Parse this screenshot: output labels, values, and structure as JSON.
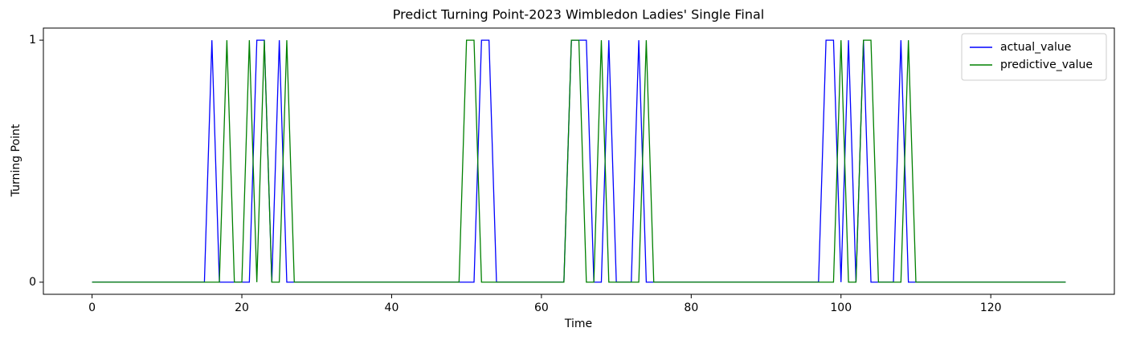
{
  "chart_data": {
    "type": "line",
    "title": "Predict Turning Point-2023 Wimbledon Ladies' Single Final",
    "x_label": "Time",
    "y_label": "Turning Point",
    "x": [
      0,
      1,
      2,
      3,
      4,
      5,
      6,
      7,
      8,
      9,
      10,
      11,
      12,
      13,
      14,
      15,
      16,
      17,
      18,
      19,
      20,
      21,
      22,
      23,
      24,
      25,
      26,
      27,
      28,
      29,
      30,
      31,
      32,
      33,
      34,
      35,
      36,
      37,
      38,
      39,
      40,
      41,
      42,
      43,
      44,
      45,
      46,
      47,
      48,
      49,
      50,
      51,
      52,
      53,
      54,
      55,
      56,
      57,
      58,
      59,
      60,
      61,
      62,
      63,
      64,
      65,
      66,
      67,
      68,
      69,
      70,
      71,
      72,
      73,
      74,
      75,
      76,
      77,
      78,
      79,
      80,
      81,
      82,
      83,
      84,
      85,
      86,
      87,
      88,
      89,
      90,
      91,
      92,
      93,
      94,
      95,
      96,
      97,
      98,
      99,
      100,
      101,
      102,
      103,
      104,
      105,
      106,
      107,
      108,
      109,
      110,
      111,
      112,
      113,
      114,
      115,
      116,
      117,
      118,
      119,
      120,
      121,
      122,
      123,
      124,
      125,
      126,
      127,
      128,
      129,
      130
    ],
    "series": [
      {
        "name": "actual_value",
        "color": "#0000ff",
        "values": [
          0,
          0,
          0,
          0,
          0,
          0,
          0,
          0,
          0,
          0,
          0,
          0,
          0,
          0,
          0,
          0,
          1,
          0,
          0,
          0,
          0,
          0,
          1,
          1,
          0,
          1,
          0,
          0,
          0,
          0,
          0,
          0,
          0,
          0,
          0,
          0,
          0,
          0,
          0,
          0,
          0,
          0,
          0,
          0,
          0,
          0,
          0,
          0,
          0,
          0,
          0,
          0,
          1,
          1,
          0,
          0,
          0,
          0,
          0,
          0,
          0,
          0,
          0,
          0,
          1,
          1,
          1,
          0,
          0,
          1,
          0,
          0,
          0,
          1,
          0,
          0,
          0,
          0,
          0,
          0,
          0,
          0,
          0,
          0,
          0,
          0,
          0,
          0,
          0,
          0,
          0,
          0,
          0,
          0,
          0,
          0,
          0,
          0,
          1,
          1,
          0,
          1,
          0,
          1,
          0,
          0,
          0,
          0,
          1,
          0,
          0,
          0,
          0,
          0,
          0,
          0,
          0,
          0,
          0,
          0,
          0,
          0,
          0,
          0,
          0,
          0,
          0,
          0,
          0,
          0,
          0
        ]
      },
      {
        "name": "predictive_value",
        "color": "#008000",
        "values": [
          0,
          0,
          0,
          0,
          0,
          0,
          0,
          0,
          0,
          0,
          0,
          0,
          0,
          0,
          0,
          0,
          0,
          0,
          1,
          0,
          0,
          1,
          0,
          1,
          0,
          0,
          1,
          0,
          0,
          0,
          0,
          0,
          0,
          0,
          0,
          0,
          0,
          0,
          0,
          0,
          0,
          0,
          0,
          0,
          0,
          0,
          0,
          0,
          0,
          0,
          1,
          1,
          0,
          0,
          0,
          0,
          0,
          0,
          0,
          0,
          0,
          0,
          0,
          0,
          1,
          1,
          0,
          0,
          1,
          0,
          0,
          0,
          0,
          0,
          1,
          0,
          0,
          0,
          0,
          0,
          0,
          0,
          0,
          0,
          0,
          0,
          0,
          0,
          0,
          0,
          0,
          0,
          0,
          0,
          0,
          0,
          0,
          0,
          0,
          0,
          1,
          0,
          0,
          1,
          1,
          0,
          0,
          0,
          0,
          1,
          0,
          0,
          0,
          0,
          0,
          0,
          0,
          0,
          0,
          0,
          0,
          0,
          0,
          0,
          0,
          0,
          0,
          0,
          0,
          0,
          0
        ]
      }
    ],
    "xlim": [
      -6.5,
      136.5
    ],
    "xticks": [
      0,
      20,
      40,
      60,
      80,
      100,
      120
    ],
    "ylim": [
      -0.05,
      1.05
    ],
    "yticks": [
      0,
      1
    ],
    "legend": "upper right"
  }
}
